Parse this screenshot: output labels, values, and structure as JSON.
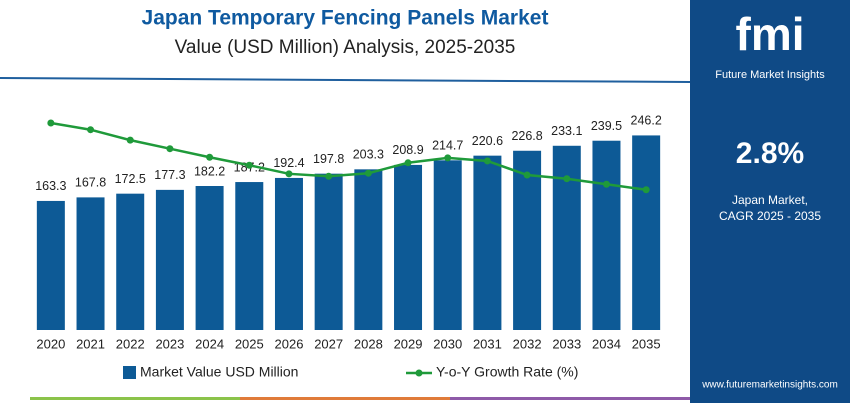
{
  "chart_data": {
    "type": "bar",
    "title": "Japan Temporary Fencing Panels Market",
    "subtitle": "Value (USD Million) Analysis, 2025-2035",
    "categories": [
      "2020",
      "2021",
      "2022",
      "2023",
      "2024",
      "2025",
      "2026",
      "2027",
      "2028",
      "2029",
      "2030",
      "2031",
      "2032",
      "2033",
      "2034",
      "2035"
    ],
    "series": [
      {
        "name": "Market Value USD Million",
        "type": "bar",
        "color": "#0d5a96",
        "values": [
          163.3,
          167.8,
          172.5,
          177.3,
          182.2,
          187.2,
          192.4,
          197.8,
          203.3,
          208.9,
          214.7,
          220.6,
          226.8,
          233.1,
          239.5,
          246.2
        ]
      },
      {
        "name": "Y-o-Y Growth Rate (%)",
        "type": "line",
        "axis": "y2",
        "color": "#1f9a3a",
        "values": [
          3.38,
          3.27,
          3.1,
          2.96,
          2.82,
          2.69,
          2.55,
          2.51,
          2.56,
          2.73,
          2.81,
          2.76,
          2.53,
          2.47,
          2.38,
          2.29
        ]
      }
    ],
    "ylim": [
      0,
      310
    ],
    "y2lim": [
      0,
      4
    ]
  },
  "side_panel": {
    "value": "2.8%",
    "caption_line1": "Japan Market,",
    "caption_line2": "CAGR 2025 - 2035",
    "brand": "fmi",
    "brand_name": "Future Market Insights",
    "website": "www.futuremarketinsights.com"
  }
}
